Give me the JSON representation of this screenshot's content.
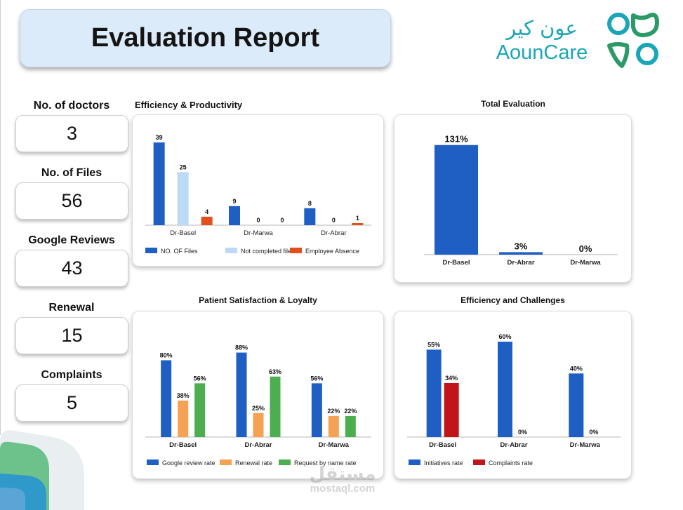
{
  "header": {
    "title": "Evaluation Report"
  },
  "logo": {
    "arabic": "عون كير",
    "latin": "AounCare"
  },
  "stats": [
    {
      "label": "No. of doctors",
      "value": "3"
    },
    {
      "label": "No. of Files",
      "value": "56"
    },
    {
      "label": "Google Reviews",
      "value": "43"
    },
    {
      "label": "Renewal",
      "value": "15"
    },
    {
      "label": "Complaints",
      "value": "5"
    }
  ],
  "watermark": {
    "arabic": "مستقل",
    "latin": "mostaql.com"
  },
  "colors": {
    "blue": "#1f5fc4",
    "light_blue": "#bcd9f6",
    "orange_red": "#e0501f",
    "orange": "#f6a255",
    "green": "#4cae4f",
    "red": "#c0151b",
    "logo_teal": "#1aa6b7",
    "logo_green": "#2c9a68"
  },
  "chart_data": [
    {
      "id": "efficiency_productivity",
      "type": "bar",
      "title": "Efficiency & Productivity",
      "categories": [
        "Dr-Basel",
        "Dr-Marwa",
        "Dr-Abrar"
      ],
      "series": [
        {
          "name": "NO. OF Files",
          "color": "#1f5fc4",
          "values": [
            39,
            9,
            8
          ],
          "labels": [
            "39",
            "9",
            "8"
          ]
        },
        {
          "name": "Not completed files",
          "color": "#bcd9f6",
          "values": [
            25,
            0,
            0
          ],
          "labels": [
            "25",
            "0",
            "0"
          ]
        },
        {
          "name": "Employee Absence",
          "color": "#e0501f",
          "values": [
            4,
            0,
            1
          ],
          "labels": [
            "4",
            "0",
            "1"
          ]
        }
      ],
      "ylim": [
        0,
        42
      ],
      "legend": "bottom",
      "bold_categories": false
    },
    {
      "id": "total_evaluation",
      "type": "bar",
      "title": "Total Evaluation",
      "categories": [
        "Dr-Basel",
        "Dr-Abrar",
        "Dr-Marwa"
      ],
      "series": [
        {
          "name": "Total Evaluation",
          "color": "#1f5fc4",
          "values": [
            131,
            3,
            0
          ],
          "labels": [
            "131%",
            "3%",
            "0%"
          ]
        }
      ],
      "ylim": [
        0,
        140
      ],
      "legend": "none",
      "bold_categories": true
    },
    {
      "id": "patient_satisfaction_loyalty",
      "type": "bar",
      "title": "Patient Satisfaction & Loyalty",
      "categories": [
        "Dr-Basel",
        "Dr-Abrar",
        "Dr-Marwa"
      ],
      "series": [
        {
          "name": "Google review rate",
          "color": "#1f5fc4",
          "values": [
            80,
            88,
            56
          ],
          "labels": [
            "80%",
            "88%",
            "56%"
          ]
        },
        {
          "name": "Renewal rate",
          "color": "#f6a255",
          "values": [
            38,
            25,
            22
          ],
          "labels": [
            "38%",
            "25%",
            "22%"
          ]
        },
        {
          "name": "Request by name rate",
          "color": "#4cae4f",
          "values": [
            56,
            63,
            22
          ],
          "labels": [
            "56%",
            "63%",
            "22%"
          ]
        }
      ],
      "ylim": [
        0,
        95
      ],
      "legend": "bottom",
      "bold_categories": true
    },
    {
      "id": "efficiency_challenges",
      "type": "bar",
      "title": "Efficiency and Challenges",
      "categories": [
        "Dr-Basel",
        "Dr-Abrar",
        "Dr-Marwa"
      ],
      "series": [
        {
          "name": "Initiatives rate",
          "color": "#1f5fc4",
          "values": [
            55,
            60,
            40
          ],
          "labels": [
            "55%",
            "60%",
            "40%"
          ]
        },
        {
          "name": "Complaints rate",
          "color": "#c0151b",
          "values": [
            34,
            0,
            0
          ],
          "labels": [
            "34%",
            "0%",
            "0%"
          ]
        }
      ],
      "ylim": [
        0,
        64
      ],
      "legend": "bottom",
      "bold_categories": true
    }
  ]
}
